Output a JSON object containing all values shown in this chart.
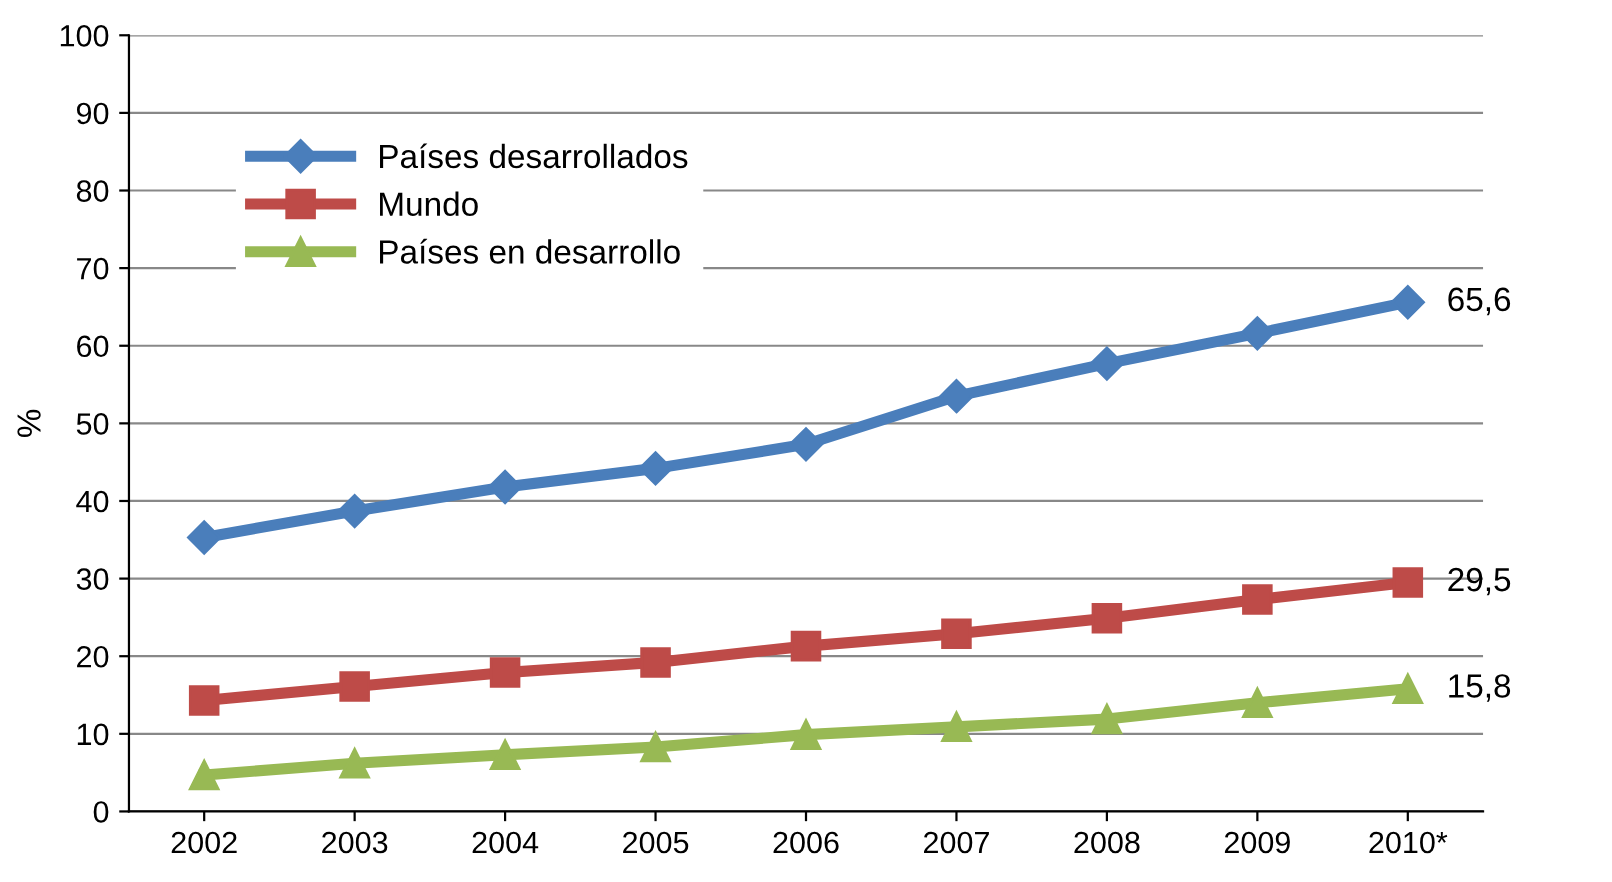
{
  "chart_data": {
    "type": "line",
    "ylabel": "%",
    "categories": [
      "2002",
      "2003",
      "2004",
      "2005",
      "2006",
      "2007",
      "2008",
      "2009",
      "2010*"
    ],
    "ylim": [
      0,
      100
    ],
    "yticks": [
      0,
      10,
      20,
      30,
      40,
      50,
      60,
      70,
      80,
      90,
      100
    ],
    "grid": "y",
    "legend": "top left",
    "series": [
      {
        "name": "Países desarrollados",
        "color": "#4a7ebb",
        "marker": "diamond",
        "values": [
          35.3,
          38.7,
          41.8,
          44.2,
          47.3,
          53.5,
          57.7,
          61.6,
          65.6
        ],
        "value_labels": [
          null,
          null,
          null,
          null,
          null,
          null,
          null,
          null,
          "65,6"
        ]
      },
      {
        "name": "Mundo",
        "color": "#be4b48",
        "marker": "square",
        "values": [
          14.3,
          16.1,
          17.9,
          19.2,
          21.3,
          22.9,
          24.9,
          27.3,
          29.5
        ],
        "value_labels": [
          null,
          null,
          null,
          null,
          null,
          null,
          null,
          null,
          "29,5"
        ]
      },
      {
        "name": "Países en desarrollo",
        "color": "#98b954",
        "marker": "triangle",
        "values": [
          4.7,
          6.2,
          7.3,
          8.3,
          9.9,
          10.9,
          11.9,
          14.0,
          15.8
        ],
        "value_labels": [
          null,
          null,
          null,
          null,
          null,
          null,
          null,
          null,
          "15,8"
        ]
      }
    ]
  }
}
